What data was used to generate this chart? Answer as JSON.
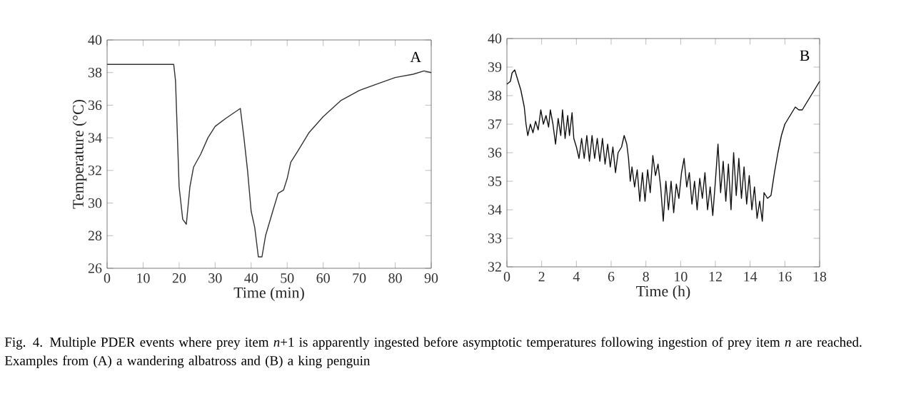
{
  "chart_data": [
    {
      "type": "line",
      "xlabel": "Time (min)",
      "ylabel": "Temperature (°C)",
      "xlim": [
        0,
        90
      ],
      "ylim": [
        26,
        40
      ],
      "xticks": [
        0,
        10,
        20,
        30,
        40,
        50,
        60,
        70,
        80,
        90
      ],
      "yticks": [
        26,
        28,
        30,
        32,
        34,
        36,
        38,
        40
      ],
      "grid": false,
      "annotations": [
        "A",
        "Fig. 4. Multiple PDER events where prey item *n*+1 is apparently ingested before asymptotic temperatures following ingestion of prey item *n* are reached. Examples from (A) a wandering albatross and (B) a king penguin"
      ],
      "series": [
        {
          "color": "#333333",
          "x": [
            0,
            18.5,
            19,
            20,
            21,
            22,
            23,
            24,
            26,
            28,
            30,
            33,
            37,
            38,
            39,
            40,
            41,
            42,
            43,
            44,
            46,
            47.5,
            49,
            50,
            51,
            53,
            56,
            60,
            65,
            70,
            75,
            80,
            85,
            88,
            90
          ],
          "values": [
            38.5,
            38.5,
            37.5,
            31,
            29,
            28.7,
            31,
            32.2,
            33,
            34,
            34.7,
            35.2,
            35.8,
            34,
            32,
            29.5,
            28.5,
            26.7,
            26.7,
            28,
            29.5,
            30.6,
            30.8,
            31.5,
            32.5,
            33.2,
            34.3,
            35.3,
            36.3,
            36.9,
            37.3,
            37.7,
            37.9,
            38.1,
            38.0
          ]
        }
      ]
    },
    {
      "type": "line",
      "xlabel": "Time (h)",
      "xlim": [
        0,
        18
      ],
      "ylim": [
        32,
        40
      ],
      "xticks": [
        0,
        2,
        4,
        6,
        8,
        10,
        12,
        14,
        16,
        18
      ],
      "yticks": [
        32,
        33,
        34,
        35,
        36,
        37,
        38,
        39,
        40
      ],
      "grid": false,
      "annotations": [
        "B"
      ],
      "series": [
        {
          "color": "#111111",
          "x": [
            0,
            0.2,
            0.3,
            0.45,
            0.6,
            0.8,
            1.0,
            1.1,
            1.2,
            1.35,
            1.5,
            1.65,
            1.8,
            1.95,
            2.1,
            2.25,
            2.4,
            2.5,
            2.65,
            2.8,
            2.95,
            3.1,
            3.2,
            3.35,
            3.5,
            3.6,
            3.75,
            3.85,
            4.0,
            4.15,
            4.3,
            4.45,
            4.6,
            4.75,
            4.9,
            5.05,
            5.2,
            5.35,
            5.5,
            5.65,
            5.8,
            5.95,
            6.1,
            6.25,
            6.4,
            6.6,
            6.75,
            6.9,
            7.0,
            7.1,
            7.2,
            7.35,
            7.5,
            7.65,
            7.8,
            7.95,
            8.1,
            8.25,
            8.4,
            8.55,
            8.7,
            8.85,
            9.0,
            9.15,
            9.3,
            9.45,
            9.6,
            9.75,
            9.9,
            10.05,
            10.2,
            10.35,
            10.5,
            10.65,
            10.8,
            10.95,
            11.1,
            11.25,
            11.4,
            11.55,
            11.7,
            11.85,
            12.0,
            12.15,
            12.3,
            12.45,
            12.6,
            12.75,
            12.9,
            13.05,
            13.2,
            13.35,
            13.5,
            13.65,
            13.8,
            13.95,
            14.1,
            14.25,
            14.4,
            14.55,
            14.7,
            14.8,
            15.0,
            15.2,
            15.4,
            15.6,
            15.8,
            16.0,
            16.3,
            16.6,
            16.8,
            17.0,
            17.3,
            17.6,
            18.0
          ],
          "values": [
            38.4,
            38.5,
            38.8,
            38.9,
            38.6,
            38.2,
            37.6,
            37.0,
            36.6,
            37.0,
            36.7,
            37.1,
            36.8,
            37.5,
            37.0,
            37.3,
            36.9,
            37.5,
            37.0,
            36.3,
            37.2,
            36.6,
            37.5,
            36.5,
            37.3,
            36.6,
            37.4,
            36.5,
            36.2,
            35.8,
            36.5,
            35.8,
            36.6,
            35.7,
            36.6,
            35.8,
            36.5,
            35.7,
            36.5,
            35.6,
            36.3,
            35.5,
            36.2,
            35.3,
            36.0,
            36.2,
            36.6,
            36.3,
            35.8,
            35.0,
            35.5,
            34.8,
            35.4,
            34.3,
            35.3,
            34.3,
            35.4,
            34.6,
            35.9,
            35.2,
            35.6,
            34.8,
            33.6,
            35.0,
            34.0,
            35.0,
            33.9,
            34.9,
            34.4,
            35.3,
            35.8,
            34.8,
            35.3,
            34.2,
            35.0,
            34.0,
            35.1,
            34.4,
            35.3,
            34.0,
            34.8,
            33.8,
            35.0,
            36.3,
            34.6,
            35.7,
            34.3,
            35.6,
            34.0,
            36.0,
            34.5,
            35.8,
            34.4,
            35.5,
            34.2,
            35.2,
            34.0,
            34.8,
            33.7,
            34.3,
            33.6,
            34.6,
            34.4,
            34.5,
            35.3,
            36.0,
            36.6,
            37.0,
            37.3,
            37.6,
            37.5,
            37.5,
            37.8,
            38.1,
            38.5
          ]
        }
      ]
    }
  ]
}
